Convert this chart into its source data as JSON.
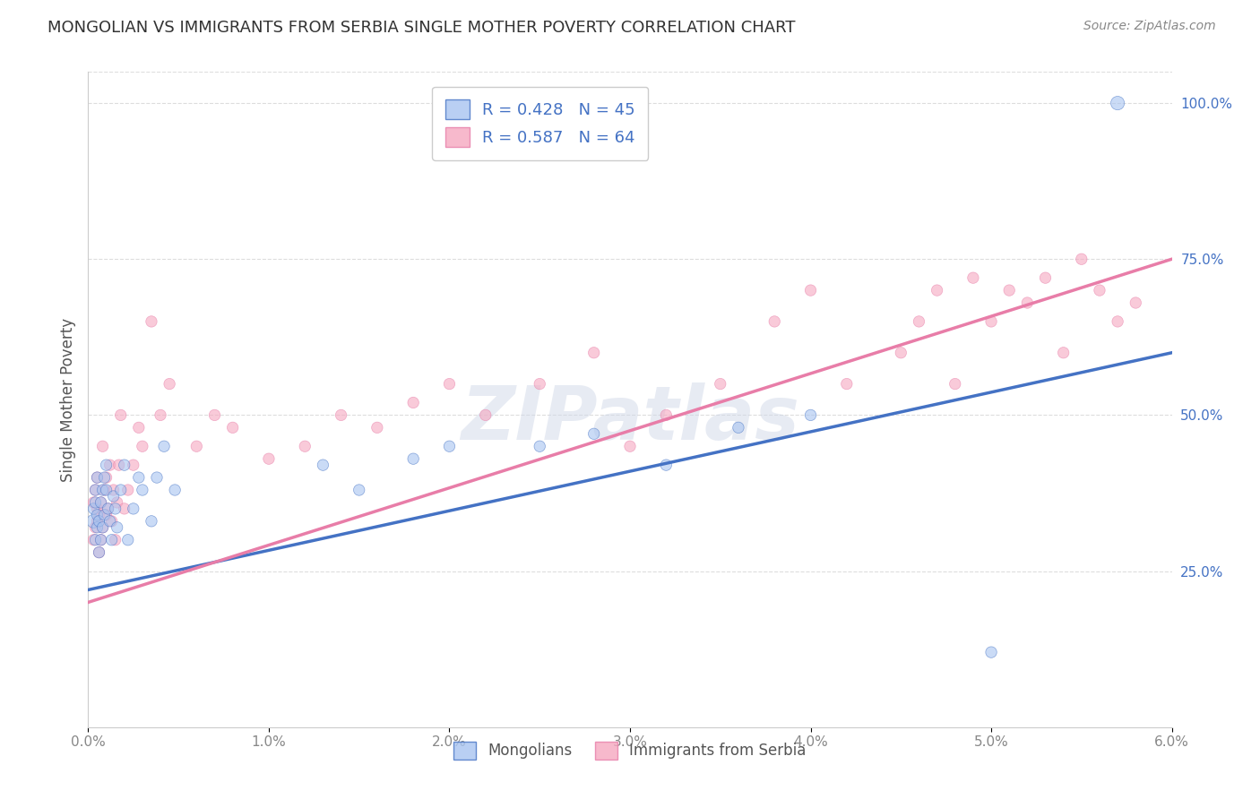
{
  "title": "MONGOLIAN VS IMMIGRANTS FROM SERBIA SINGLE MOTHER POVERTY CORRELATION CHART",
  "source": "Source: ZipAtlas.com",
  "ylabel": "Single Mother Poverty",
  "right_yticks": [
    "100.0%",
    "75.0%",
    "50.0%",
    "25.0%"
  ],
  "right_ytick_vals": [
    1.0,
    0.75,
    0.5,
    0.25
  ],
  "legend1_label": "R = 0.428   N = 45",
  "legend2_label": "R = 0.587   N = 64",
  "legend1_color": "#a8c4f0",
  "legend2_color": "#f5a8c0",
  "line1_color": "#4472c4",
  "line2_color": "#e87da8",
  "watermark": "ZIPatlas",
  "background_color": "#ffffff",
  "xlim": [
    0.0,
    0.06
  ],
  "ylim": [
    0.0,
    1.05
  ],
  "xtick_vals": [
    0.0,
    0.01,
    0.02,
    0.03,
    0.04,
    0.05,
    0.06
  ],
  "xtick_labels": [
    "0.0%",
    "1.0%",
    "2.0%",
    "3.0%",
    "4.0%",
    "5.0%",
    "6.0%"
  ],
  "mongolian_x": [
    0.0003,
    0.0003,
    0.0004,
    0.0004,
    0.0004,
    0.0005,
    0.0005,
    0.0005,
    0.0006,
    0.0006,
    0.0007,
    0.0007,
    0.0008,
    0.0008,
    0.0009,
    0.0009,
    0.001,
    0.001,
    0.0011,
    0.0012,
    0.0013,
    0.0014,
    0.0015,
    0.0016,
    0.0018,
    0.002,
    0.0022,
    0.0025,
    0.0028,
    0.003,
    0.0035,
    0.0038,
    0.0042,
    0.0048,
    0.013,
    0.015,
    0.018,
    0.02,
    0.025,
    0.028,
    0.032,
    0.036,
    0.04,
    0.05,
    0.057
  ],
  "mongolian_y": [
    0.33,
    0.35,
    0.3,
    0.36,
    0.38,
    0.32,
    0.34,
    0.4,
    0.28,
    0.33,
    0.3,
    0.36,
    0.32,
    0.38,
    0.34,
    0.4,
    0.38,
    0.42,
    0.35,
    0.33,
    0.3,
    0.37,
    0.35,
    0.32,
    0.38,
    0.42,
    0.3,
    0.35,
    0.4,
    0.38,
    0.33,
    0.4,
    0.45,
    0.38,
    0.42,
    0.38,
    0.43,
    0.45,
    0.45,
    0.47,
    0.42,
    0.48,
    0.5,
    0.12,
    1.0
  ],
  "mongolian_size": [
    120,
    80,
    80,
    80,
    80,
    80,
    80,
    80,
    80,
    80,
    80,
    80,
    80,
    80,
    80,
    80,
    80,
    80,
    80,
    80,
    80,
    80,
    80,
    80,
    80,
    80,
    80,
    80,
    80,
    80,
    80,
    80,
    80,
    80,
    80,
    80,
    80,
    80,
    80,
    80,
    80,
    80,
    80,
    80,
    120
  ],
  "serbia_x": [
    0.0003,
    0.0003,
    0.0004,
    0.0004,
    0.0005,
    0.0005,
    0.0005,
    0.0006,
    0.0006,
    0.0007,
    0.0007,
    0.0008,
    0.0008,
    0.0009,
    0.001,
    0.001,
    0.0011,
    0.0012,
    0.0013,
    0.0014,
    0.0015,
    0.0016,
    0.0017,
    0.0018,
    0.002,
    0.0022,
    0.0025,
    0.0028,
    0.003,
    0.0035,
    0.004,
    0.0045,
    0.006,
    0.007,
    0.008,
    0.01,
    0.012,
    0.014,
    0.016,
    0.018,
    0.02,
    0.022,
    0.025,
    0.028,
    0.03,
    0.032,
    0.035,
    0.038,
    0.04,
    0.042,
    0.045,
    0.046,
    0.047,
    0.048,
    0.049,
    0.05,
    0.051,
    0.052,
    0.053,
    0.054,
    0.055,
    0.056,
    0.057,
    0.058
  ],
  "serbia_y": [
    0.3,
    0.36,
    0.32,
    0.38,
    0.33,
    0.4,
    0.35,
    0.28,
    0.34,
    0.3,
    0.36,
    0.32,
    0.45,
    0.38,
    0.34,
    0.4,
    0.35,
    0.42,
    0.33,
    0.38,
    0.3,
    0.36,
    0.42,
    0.5,
    0.35,
    0.38,
    0.42,
    0.48,
    0.45,
    0.65,
    0.5,
    0.55,
    0.45,
    0.5,
    0.48,
    0.43,
    0.45,
    0.5,
    0.48,
    0.52,
    0.55,
    0.5,
    0.55,
    0.6,
    0.45,
    0.5,
    0.55,
    0.65,
    0.7,
    0.55,
    0.6,
    0.65,
    0.7,
    0.55,
    0.72,
    0.65,
    0.7,
    0.68,
    0.72,
    0.6,
    0.75,
    0.7,
    0.65,
    0.68
  ],
  "serbia_size": [
    80,
    80,
    80,
    80,
    80,
    80,
    80,
    80,
    80,
    80,
    80,
    80,
    80,
    80,
    80,
    80,
    80,
    80,
    80,
    80,
    80,
    80,
    80,
    80,
    80,
    80,
    80,
    80,
    80,
    80,
    80,
    80,
    80,
    80,
    80,
    80,
    80,
    80,
    80,
    80,
    80,
    80,
    80,
    80,
    80,
    80,
    80,
    80,
    80,
    80,
    80,
    80,
    80,
    80,
    80,
    80,
    80,
    80,
    80,
    80,
    80,
    80,
    80,
    80
  ]
}
